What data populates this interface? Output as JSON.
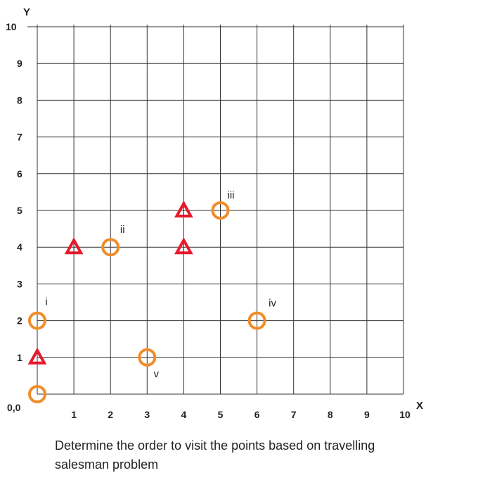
{
  "chart_data": {
    "type": "scatter",
    "xlabel": "X",
    "ylabel": "Y",
    "xlim": [
      0,
      10
    ],
    "ylim": [
      0,
      10
    ],
    "grid": true,
    "origin_label": "0,0",
    "x_ticks": [
      "1",
      "2",
      "3",
      "4",
      "5",
      "6",
      "7",
      "8",
      "9",
      "10"
    ],
    "y_ticks": [
      "1",
      "2",
      "3",
      "4",
      "5",
      "6",
      "7",
      "8",
      "9",
      "10"
    ],
    "circle_points": [
      {
        "x": 0,
        "y": 0,
        "label": ""
      },
      {
        "x": 0,
        "y": 2,
        "label": "i"
      },
      {
        "x": 2,
        "y": 4,
        "label": "ii"
      },
      {
        "x": 5,
        "y": 5,
        "label": "iii"
      },
      {
        "x": 6,
        "y": 2,
        "label": "iv"
      },
      {
        "x": 3,
        "y": 1,
        "label": "v"
      }
    ],
    "triangle_points": [
      {
        "x": 0,
        "y": 1
      },
      {
        "x": 1,
        "y": 4
      },
      {
        "x": 4,
        "y": 4
      },
      {
        "x": 4,
        "y": 5
      }
    ],
    "colors": {
      "circle": "#f28c28",
      "triangle": "#e8192c",
      "grid": "#333333"
    }
  },
  "caption": "Determine the order to visit the points based on travelling salesman problem"
}
